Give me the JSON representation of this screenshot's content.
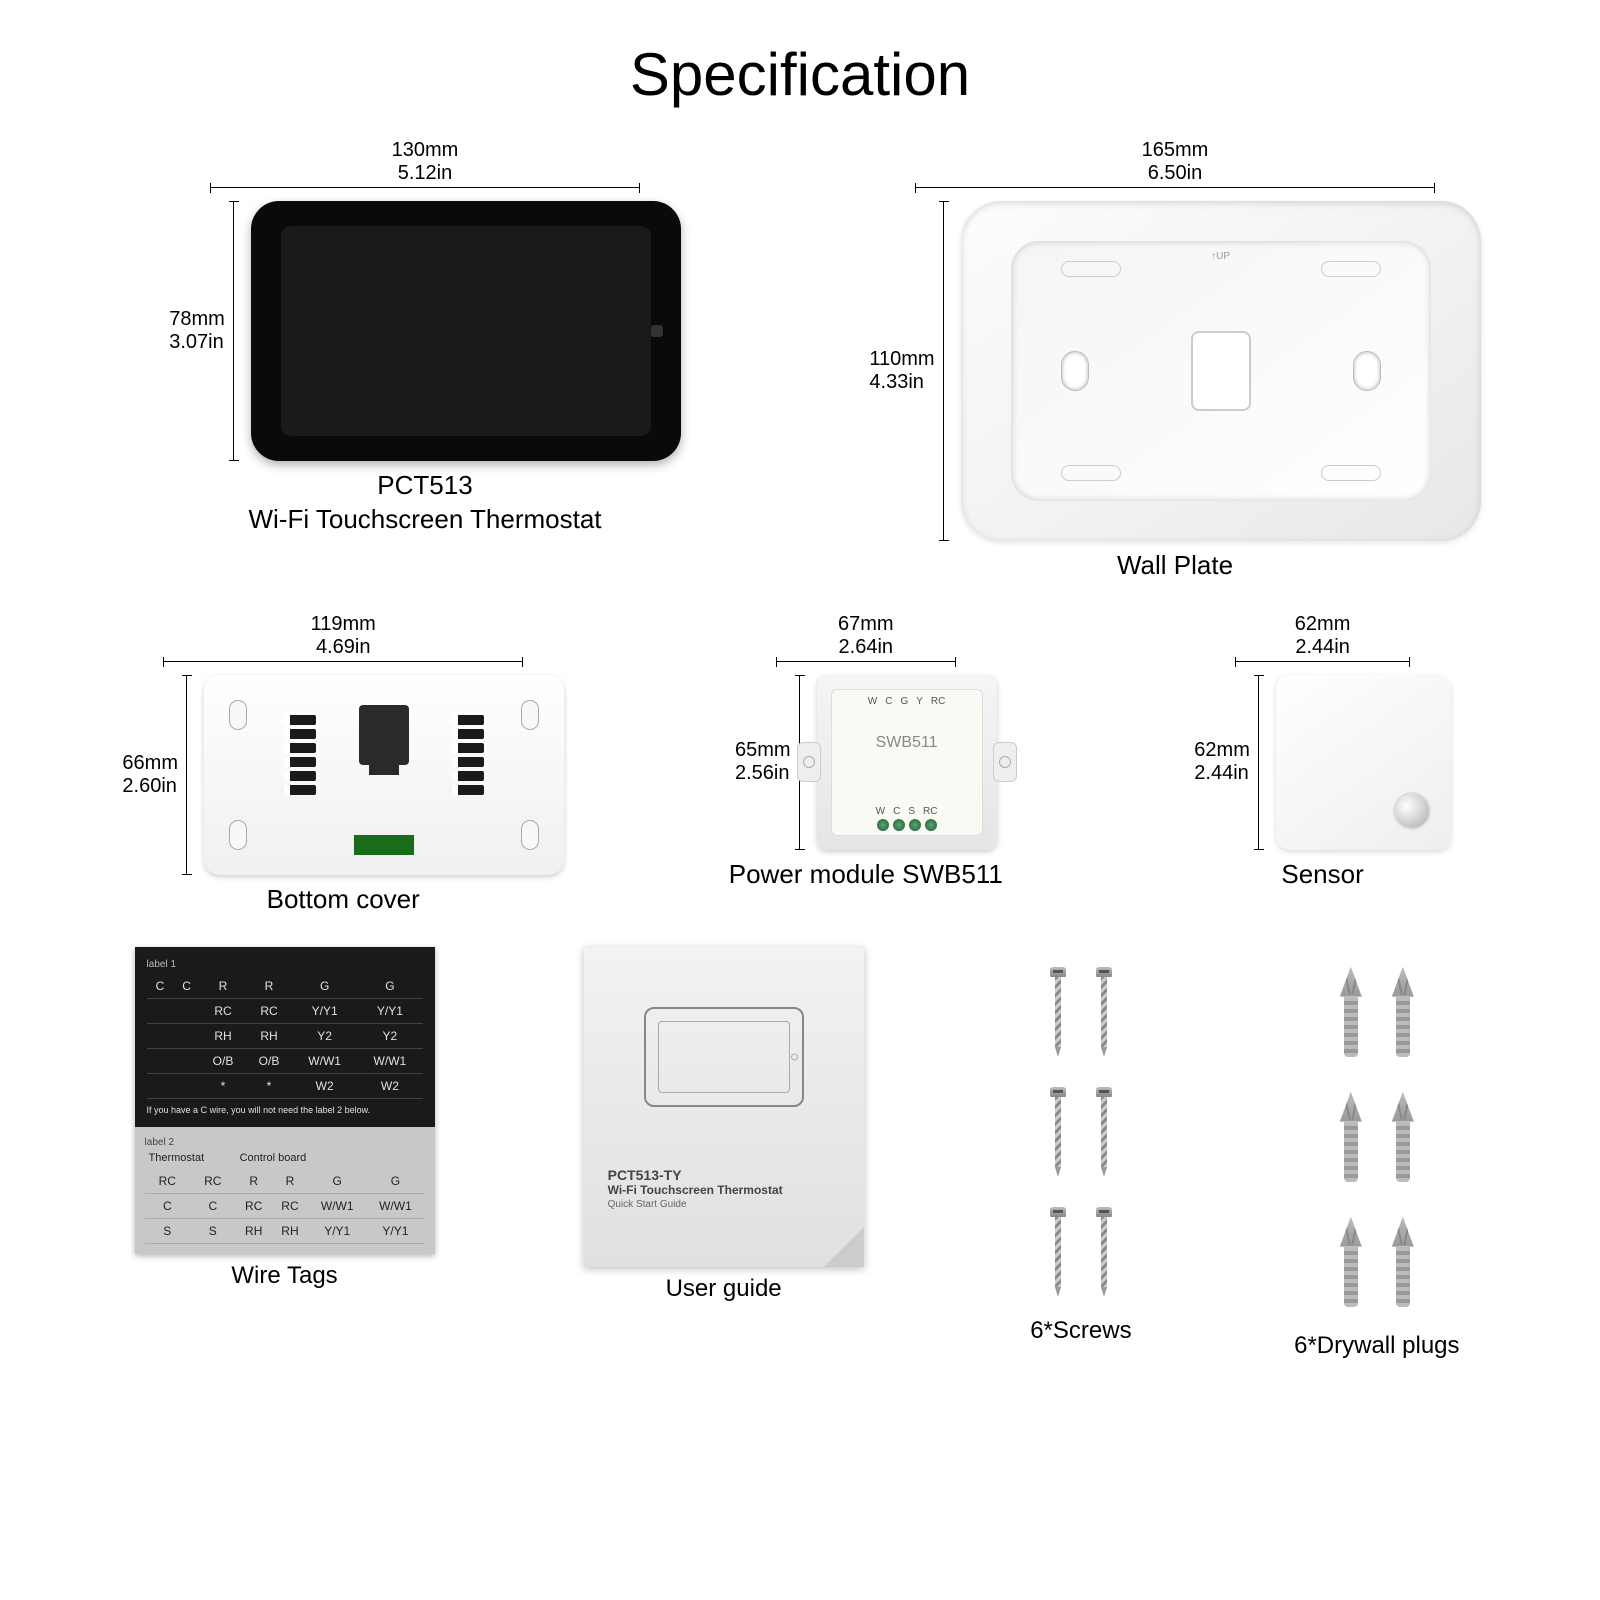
{
  "title": "Specification",
  "thermostat": {
    "width_mm": "130mm",
    "width_in": "5.12in",
    "height_mm": "78mm",
    "height_in": "3.07in",
    "model": "PCT513",
    "name": "Wi-Fi Touchscreen Thermostat"
  },
  "wallplate": {
    "width_mm": "165mm",
    "width_in": "6.50in",
    "height_mm": "110mm",
    "height_in": "4.33in",
    "name": "Wall Plate",
    "up": "↑UP"
  },
  "bottomcover": {
    "width_mm": "119mm",
    "width_in": "4.69in",
    "height_mm": "66mm",
    "height_in": "2.60in",
    "name": "Bottom cover"
  },
  "powermodule": {
    "width_mm": "67mm",
    "width_in": "2.64in",
    "height_mm": "65mm",
    "height_in": "2.56in",
    "name": "Power module SWB511",
    "label": "SWB511",
    "pins_top": [
      "W",
      "C",
      "G",
      "Y",
      "",
      "Y",
      "RC"
    ],
    "pins_bot": [
      "W",
      "C",
      "S",
      "RC"
    ]
  },
  "sensor": {
    "width_mm": "62mm",
    "width_in": "2.44in",
    "height_mm": "62mm",
    "height_in": "2.44in",
    "name": "Sensor"
  },
  "wiretags": {
    "name": "Wire Tags",
    "label1": "label 1",
    "label2": "label 2",
    "note": "If you have a C wire, you will not need the label 2 below.",
    "dark_rows": [
      [
        "C",
        "C",
        "R",
        "R",
        "G",
        "G"
      ],
      [
        "",
        "",
        "RC",
        "RC",
        "Y/Y1",
        "Y/Y1"
      ],
      [
        "",
        "",
        "RH",
        "RH",
        "Y2",
        "Y2"
      ],
      [
        "",
        "",
        "O/B",
        "O/B",
        "W/W1",
        "W/W1"
      ],
      [
        "",
        "",
        "*",
        "*",
        "W2",
        "W2"
      ]
    ],
    "light_header_l": "Thermostat",
    "light_header_r": "Control board",
    "light_rows": [
      [
        "RC",
        "RC",
        "R",
        "R",
        "G",
        "G"
      ],
      [
        "C",
        "C",
        "RC",
        "RC",
        "W/W1",
        "W/W1"
      ],
      [
        "S",
        "S",
        "RH",
        "RH",
        "Y/Y1",
        "Y/Y1"
      ]
    ]
  },
  "userguide": {
    "name": "User guide",
    "model": "PCT513-TY",
    "title": "Wi-Fi Touchscreen Thermostat",
    "subtitle": "Quick Start Guide"
  },
  "screws": {
    "name": "6*Screws",
    "count": 6
  },
  "plugs": {
    "name": "6*Drywall plugs",
    "count": 6
  },
  "colors": {
    "bg": "#ffffff",
    "text": "#000000",
    "device_black": "#0a0a0a",
    "plate_grey": "#e8e8e8",
    "pcb_green": "#1a6b1a"
  }
}
